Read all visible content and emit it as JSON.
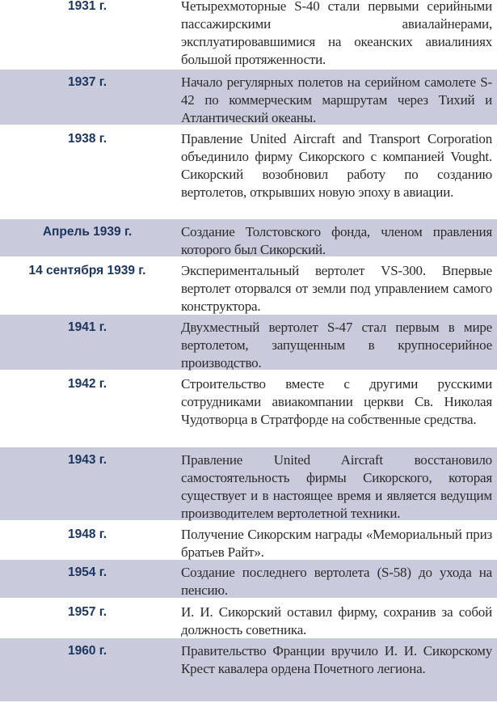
{
  "table": {
    "rows": [
      {
        "date": "1931 г.",
        "text": "Четырехмоторные S-40 стали первыми серийными пассажирскими авиалайнерами, эксплуатировавшимися на океанских авиалиниях большой протяженности.",
        "shaded": false
      },
      {
        "date": "1937 г.",
        "text": "Начало регулярных полетов на серийном самолете S-42 по коммерческим маршрутам через Тихий и Атлантический океаны.",
        "shaded": true
      },
      {
        "date": "1938 г.",
        "text": "Правление United Aircraft and Transport Corporation объединило фирму Сикорского с компанией Vought. Сикорский возобновил работу по созданию вертолетов, открывших новую эпоху в авиации.",
        "shaded": false
      },
      {
        "date": "Апрель 1939 г.",
        "text": "Создание Толстовского фонда, членом правления которого был Сикорский.",
        "shaded": true
      },
      {
        "date": "14 сентября 1939 г.",
        "text": "Экспериментальный вертолет VS-300. Впервые вертолет оторвался от земли под управлением самого конструктора.",
        "shaded": false
      },
      {
        "date": "1941 г.",
        "text": "Двухместный вертолет S-47 стал первым в мире вертолетом, запущенным в крупносерийное производство.",
        "shaded": true
      },
      {
        "date": "1942 г.",
        "text": "Строительство вместе с другими русскими сотрудниками авиакомпании церкви Св. Николая Чудотворца в Стратфорде на собственные средства.",
        "shaded": false
      },
      {
        "date": "1943 г.",
        "text": "Правление United Aircraft восстановило самостоятельность фирмы Сикорского, которая существует и в настоящее время и является ведущим производителем вертолетной техники.",
        "shaded": true
      },
      {
        "date": "1948 г.",
        "text": "Получение Сикорским награды «Мемориальный приз братьев Райт».",
        "shaded": false
      },
      {
        "date": "1954 г.",
        "text": "Создание последнего вертолета (S-58) до ухода на пенсию.",
        "shaded": true
      },
      {
        "date": "1957 г.",
        "text": "И. И. Сикорский оставил фирму, сохранив за собой должность советника.",
        "shaded": false
      },
      {
        "date": "1960 г.",
        "text": "Правительство Франции вручило И. И. Сикорскому Крест кавалера ордена Почетного легиона.",
        "shaded": true
      }
    ],
    "colors": {
      "shade": "#c9cbdd",
      "date": "#1c355f",
      "text": "#2a2a2a"
    }
  }
}
